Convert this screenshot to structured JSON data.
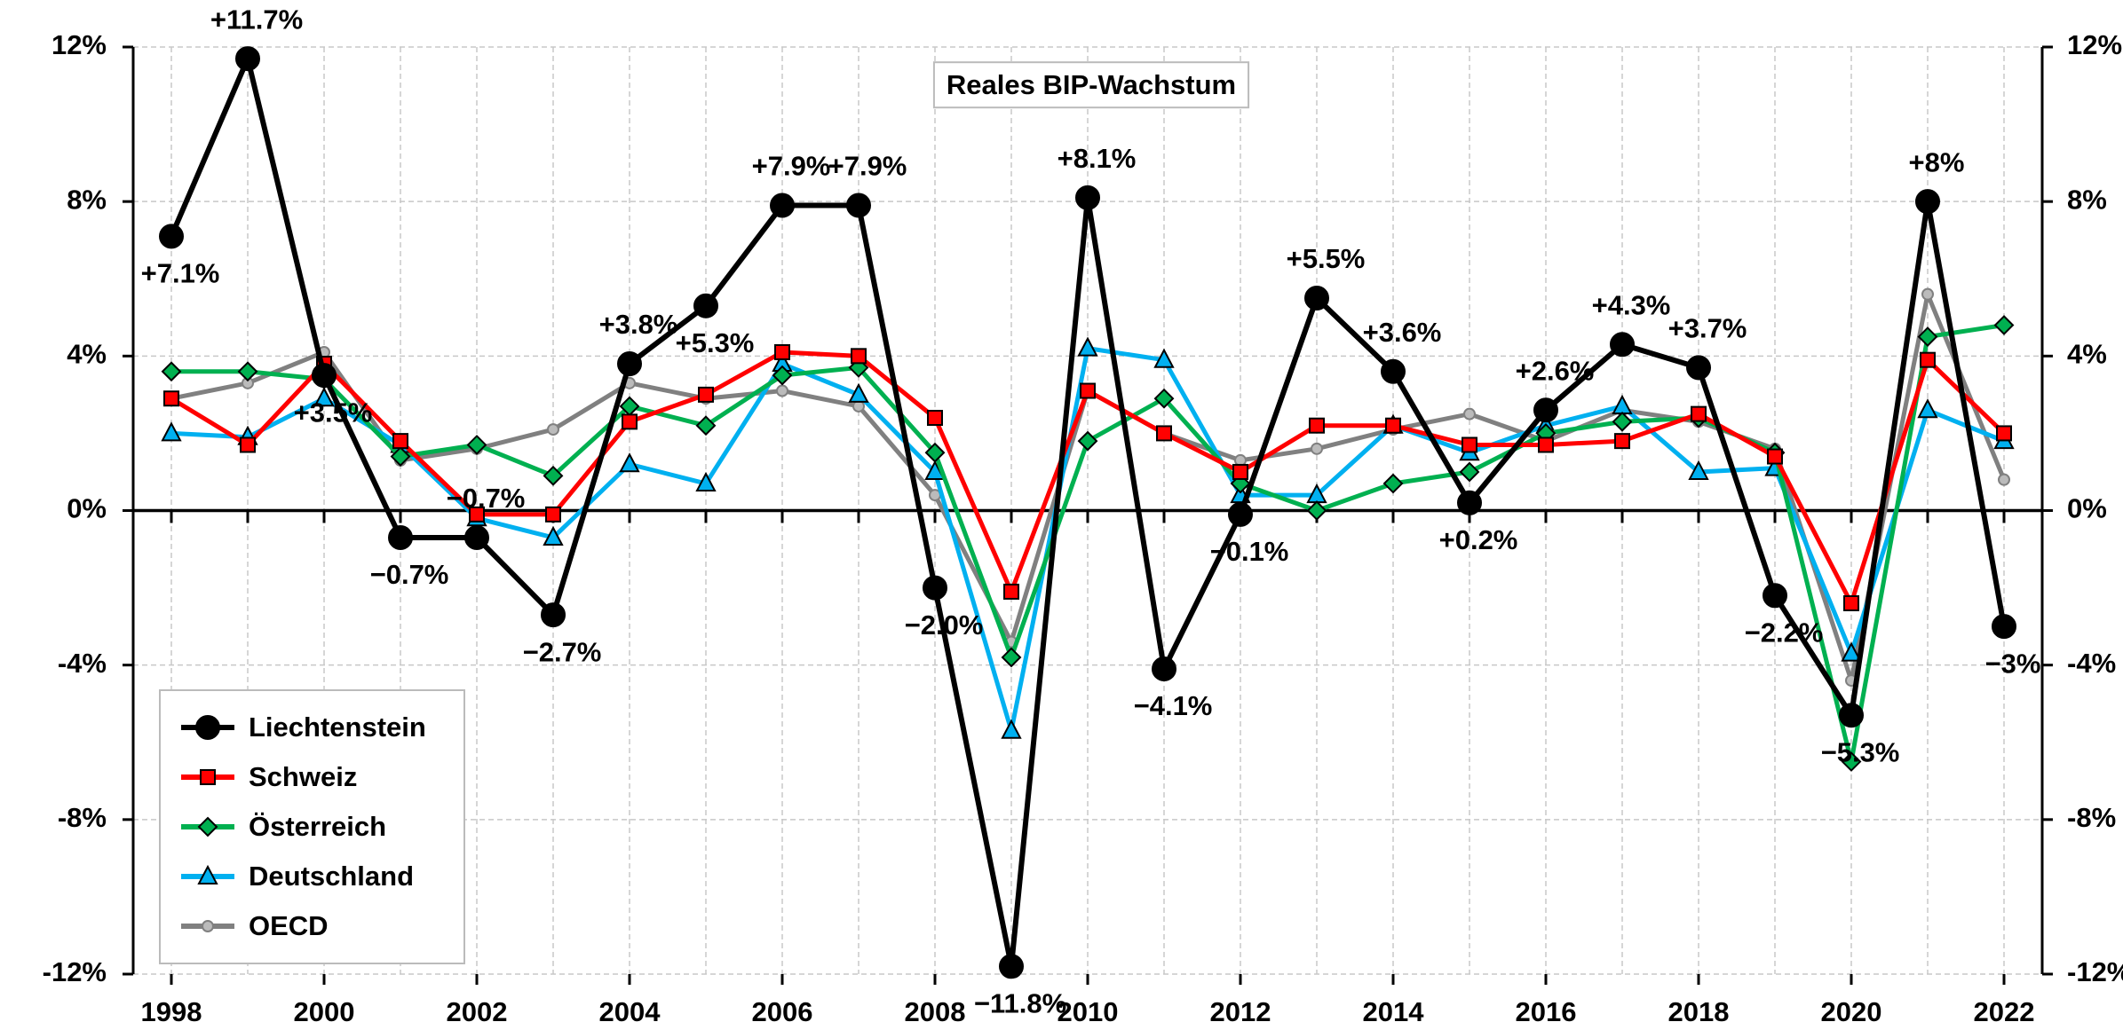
{
  "chart_data": {
    "type": "line",
    "title": "Reales BIP-Wachstum",
    "x": [
      1998,
      1999,
      2000,
      2001,
      2002,
      2003,
      2004,
      2005,
      2006,
      2007,
      2008,
      2009,
      2010,
      2011,
      2012,
      2013,
      2014,
      2015,
      2016,
      2017,
      2018,
      2019,
      2020,
      2021,
      2022
    ],
    "xlim": [
      1997.5,
      2022.5
    ],
    "xticks": [
      1998,
      2000,
      2002,
      2004,
      2006,
      2008,
      2010,
      2012,
      2014,
      2016,
      2018,
      2020,
      2022
    ],
    "ylim": [
      -12,
      12
    ],
    "yticks": [
      {
        "value": -12,
        "label": "-12%"
      },
      {
        "value": -8,
        "label": "-8%"
      },
      {
        "value": -4,
        "label": "-4%"
      },
      {
        "value": 0,
        "label": "0%"
      },
      {
        "value": 4,
        "label": "4%"
      },
      {
        "value": 8,
        "label": "8%"
      },
      {
        "value": 12,
        "label": "12%"
      }
    ],
    "grid": true,
    "legend": "lower left",
    "series": [
      {
        "name": "Liechtenstein",
        "color": "#000000",
        "marker": "circle",
        "values": [
          7.1,
          11.7,
          3.5,
          -0.7,
          -0.7,
          -2.7,
          3.8,
          5.3,
          7.9,
          7.9,
          -2.0,
          -11.8,
          8.1,
          -4.1,
          -0.1,
          5.5,
          3.6,
          0.2,
          2.6,
          4.3,
          3.7,
          -2.2,
          -5.3,
          8,
          -3
        ],
        "value_labels": [
          "+7.1%",
          "+11.7%",
          "+3.5%",
          "−0.7%",
          "−0.7%",
          "−2.7%",
          "+3.8%",
          "+5.3%",
          "+7.9%",
          "+7.9%",
          "−2.0%",
          "−11.8%",
          "+8.1%",
          "−4.1%",
          "−0.1%",
          "+5.5%",
          "+3.6%",
          "+0.2%",
          "+2.6%",
          "+4.3%",
          "+3.7%",
          "−2.2%",
          "−5.3%",
          "+8%",
          "−3%"
        ]
      },
      {
        "name": "Schweiz",
        "color": "#ff0000",
        "marker": "square",
        "values": [
          2.9,
          1.7,
          3.8,
          1.8,
          -0.1,
          -0.1,
          2.3,
          3.0,
          4.1,
          4.0,
          2.4,
          -2.1,
          3.1,
          2.0,
          1.0,
          2.2,
          2.2,
          1.7,
          1.7,
          1.8,
          2.5,
          1.4,
          -2.4,
          3.9,
          2.0
        ]
      },
      {
        "name": "Österreich",
        "color": "#00b050",
        "marker": "diamond",
        "values": [
          3.6,
          3.6,
          3.4,
          1.4,
          1.7,
          0.9,
          2.7,
          2.2,
          3.5,
          3.7,
          1.5,
          -3.8,
          1.8,
          2.9,
          0.7,
          0.0,
          0.7,
          1.0,
          2.0,
          2.3,
          2.4,
          1.5,
          -6.5,
          4.5,
          4.8
        ]
      },
      {
        "name": "Deutschland",
        "color": "#00b0f0",
        "marker": "triangle",
        "values": [
          2.0,
          1.9,
          2.9,
          1.7,
          -0.2,
          -0.7,
          1.2,
          0.7,
          3.8,
          3.0,
          1.0,
          -5.7,
          4.2,
          3.9,
          0.4,
          0.4,
          2.2,
          1.5,
          2.2,
          2.7,
          1.0,
          1.1,
          -3.7,
          2.6,
          1.8
        ]
      },
      {
        "name": "OECD",
        "color": "#808080",
        "marker": "dot",
        "values": [
          2.9,
          3.3,
          4.1,
          1.3,
          1.6,
          2.1,
          3.3,
          2.9,
          3.1,
          2.7,
          0.4,
          -3.4,
          3.1,
          2.0,
          1.3,
          1.6,
          2.1,
          2.5,
          1.8,
          2.6,
          2.3,
          1.6,
          -4.4,
          5.6,
          0.8
        ]
      }
    ]
  }
}
